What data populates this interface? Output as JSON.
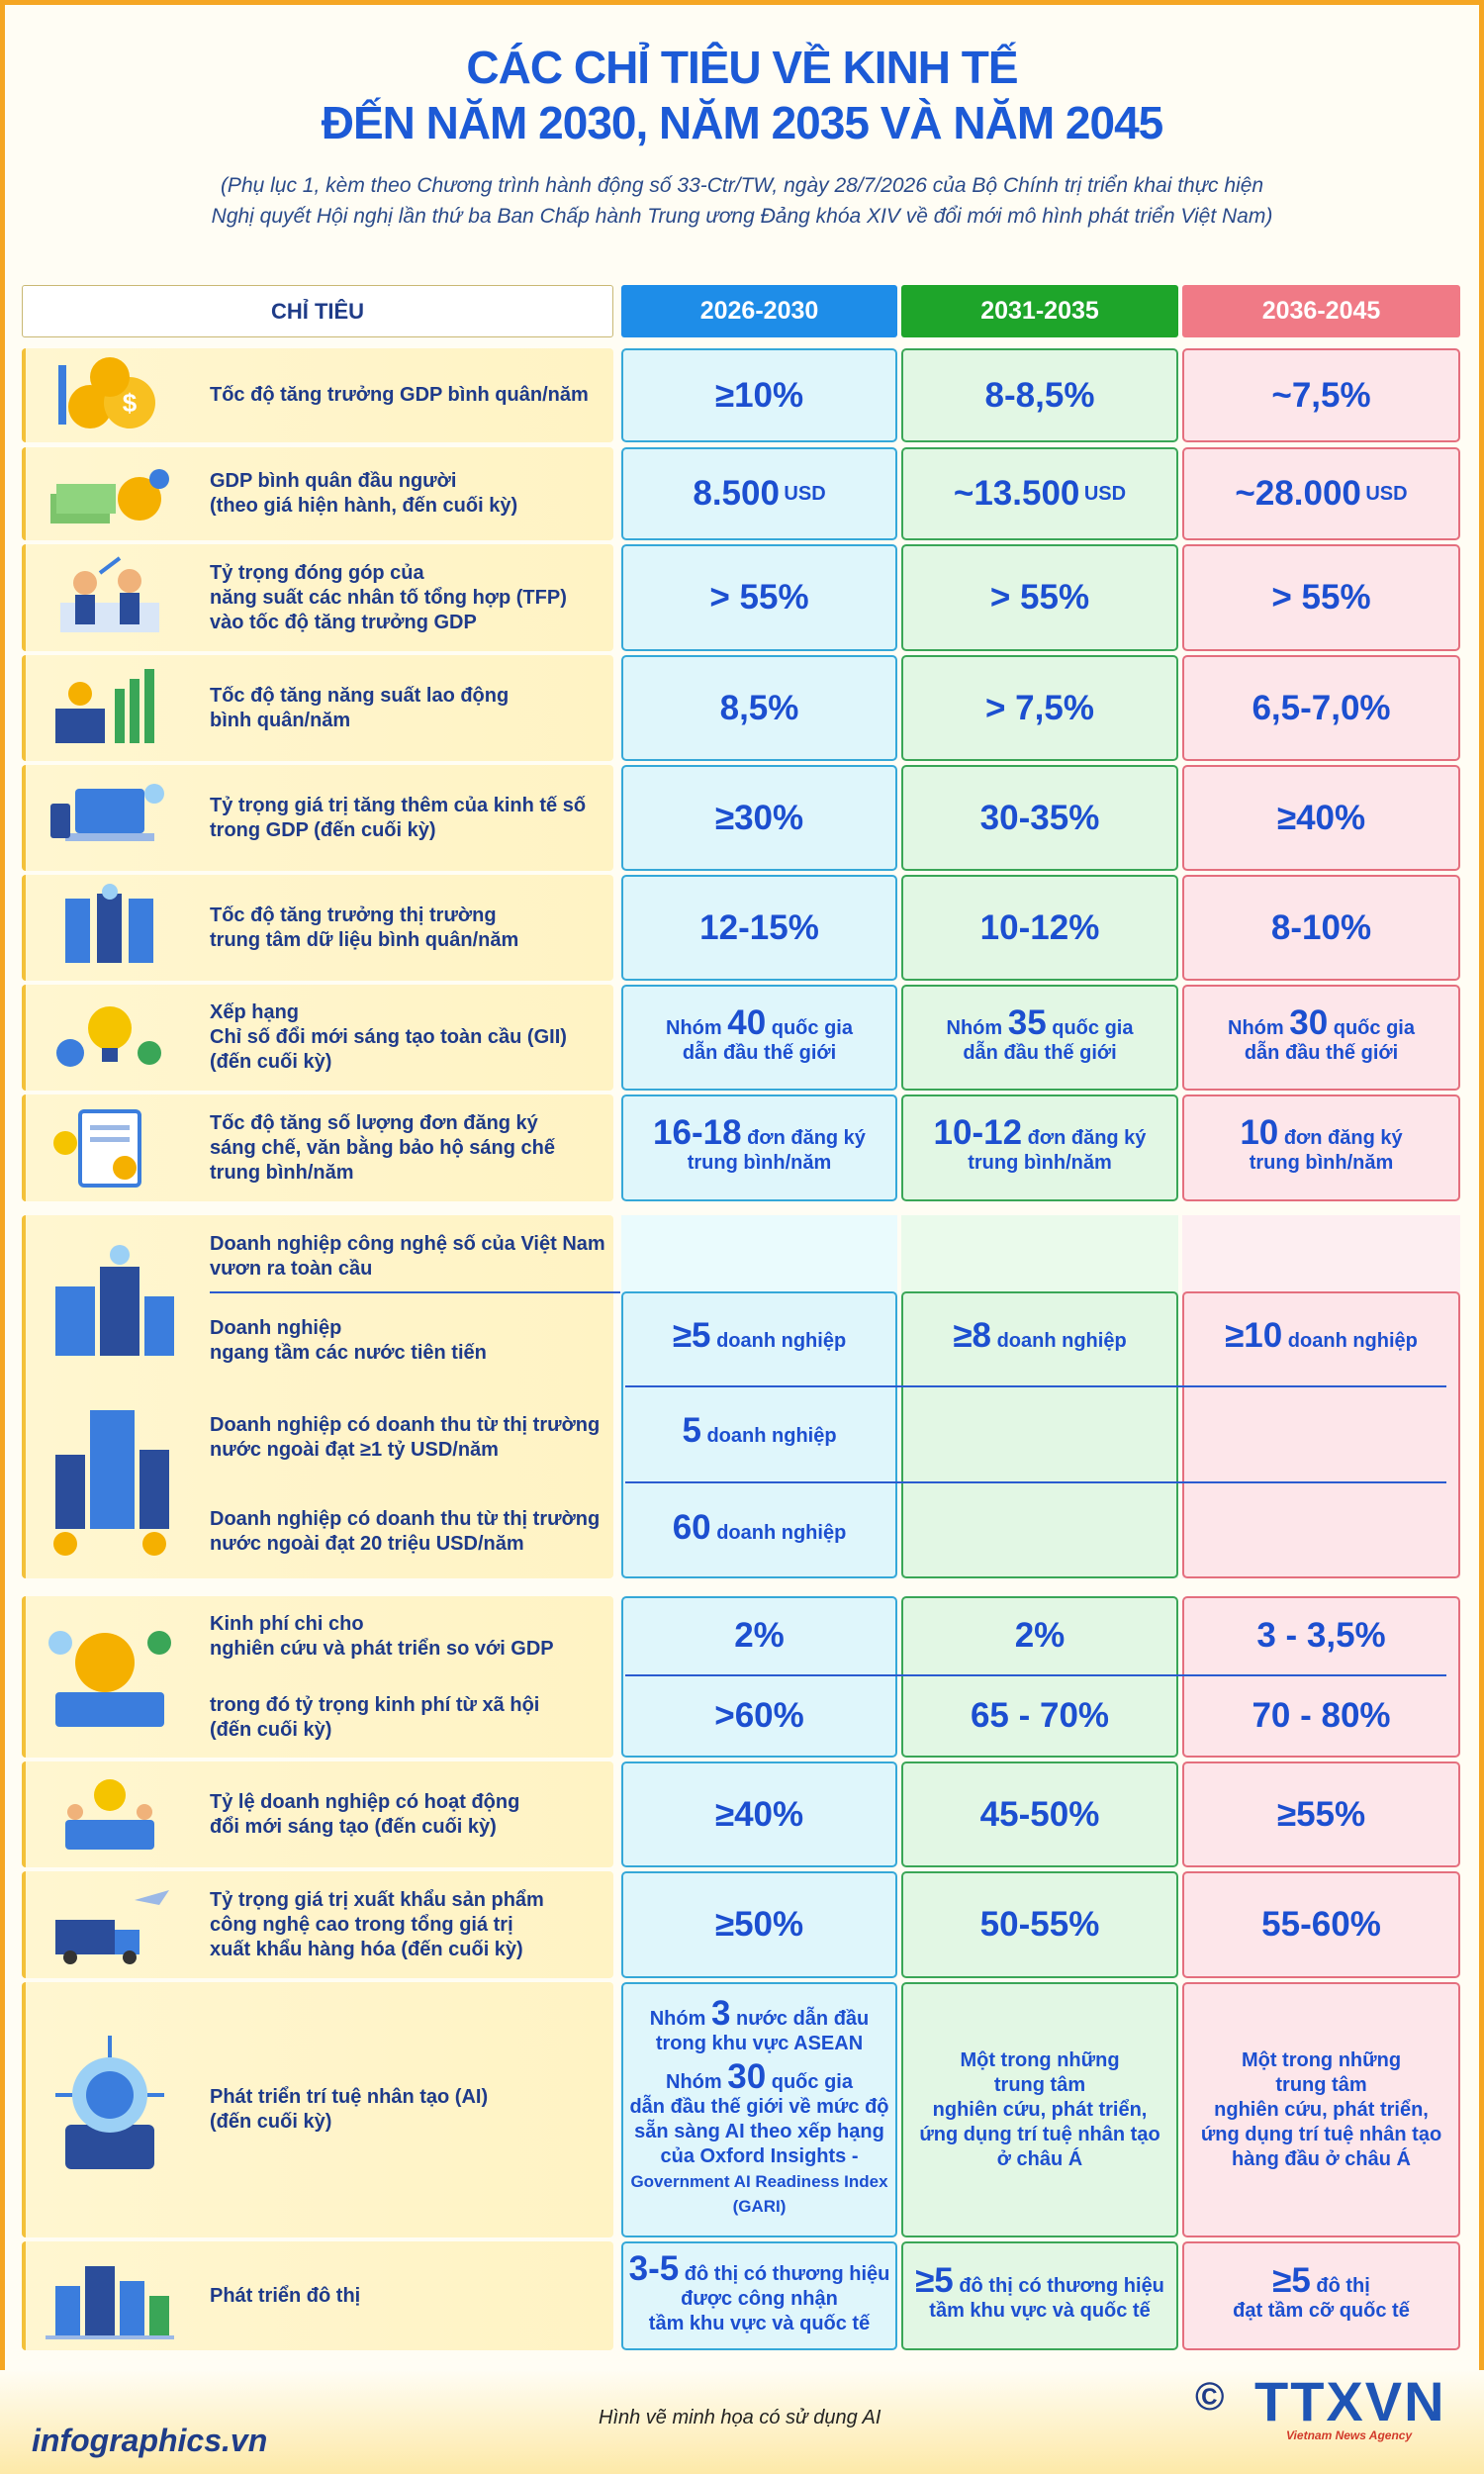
{
  "title": {
    "line1": "CÁC CHỈ TIÊU VỀ KINH TẾ",
    "line2": "ĐẾN NĂM 2030, NĂM 2035 VÀ NĂM 2045"
  },
  "subtitle": {
    "line1": "(Phụ lục 1, kèm theo Chương trình hành động số 33-Ctr/TW, ngày 28/7/2026 của Bộ Chính trị triển khai thực hiện",
    "line2": "Nghị quyết Hội nghị lần thứ ba Ban Chấp hành Trung ương Đảng khóa XIV về đổi mới mô hình phát triển Việt Nam)"
  },
  "columns": {
    "label": "CHỈ TIÊU",
    "p1": "2026-2030",
    "p2": "2031-2035",
    "p3": "2036-2045"
  },
  "colors": {
    "p1": "#1e8de8",
    "p2": "#1ea52a",
    "p3": "#f07a86",
    "accent": "#f5a623",
    "text": "#1c4fd0"
  },
  "rows": {
    "r1": {
      "l1": "Tốc độ tăng trưởng GDP bình quân/năm",
      "a": "≥10%",
      "b": "8-8,5%",
      "c": "~7,5%",
      "icon": "gold-coins-icon"
    },
    "r2": {
      "l1": "GDP bình quân đầu người",
      "l2": "(theo giá hiện hành, đến cuối kỳ)",
      "a": "8.500",
      "b": "~13.500",
      "c": "~28.000",
      "unit": "USD",
      "icon": "money-stack-icon"
    },
    "r3": {
      "l1": "Tỷ trọng đóng góp của",
      "l2": "năng suất các nhân tố tổng hợp (TFP)",
      "l3": "vào tốc độ tăng trưởng GDP",
      "a": "> 55%",
      "b": "> 55%",
      "c": "> 55%",
      "icon": "business-people-icon"
    },
    "r4": {
      "l1": "Tốc độ tăng năng suất lao động",
      "l2": "bình quân/năm",
      "a": "8,5%",
      "b": "> 7,5%",
      "c": "6,5-7,0%",
      "icon": "factory-robot-icon"
    },
    "r5": {
      "l1": "Tỷ trọng giá trị tăng thêm của kinh tế số",
      "l2": "trong GDP (đến cuối kỳ)",
      "a": "≥30%",
      "b": "30-35%",
      "c": "≥40%",
      "icon": "laptop-digital-icon"
    },
    "r6": {
      "l1": "Tốc độ tăng trưởng thị trường",
      "l2": "trung tâm dữ liệu bình quân/năm",
      "a": "12-15%",
      "b": "10-12%",
      "c": "8-10%",
      "icon": "data-center-icon"
    },
    "r7": {
      "l1": "Xếp hạng",
      "l2": "Chỉ số đổi mới sáng tạo toàn cầu (GII)",
      "l3": "(đến cuối kỳ)",
      "pre": "Nhóm",
      "a": "40",
      "b": "35",
      "c": "30",
      "post1": "quốc gia",
      "post2": "dẫn đầu thế giới",
      "icon": "lightbulb-gear-icon"
    },
    "r8": {
      "l1": "Tốc độ tăng số lượng đơn đăng ký",
      "l2": "sáng chế, văn bằng bảo hộ sáng chế",
      "l3": "trung bình/năm",
      "a": "16-18",
      "b": "10-12",
      "c": "10",
      "post1": "đơn đăng ký",
      "post2": "trung bình/năm",
      "icon": "patent-document-icon"
    },
    "r9": {
      "head1": "Doanh nghiệp công nghệ số của Việt Nam",
      "head2": "vươn ra toàn cầu",
      "s1l1": "Doanh nghiệp",
      "s1l2": "ngang tầm các nước tiên tiến",
      "s1a": "≥5",
      "s1b": "≥8",
      "s1c": "≥10",
      "s2l1": "Doanh nghiệp có doanh thu từ thị trường",
      "s2l2": "nước ngoài đạt ≥1 tỷ USD/năm",
      "s2a": "5",
      "s3l1": "Doanh nghiệp có doanh thu từ thị trường",
      "s3l2": "nước ngoài đạt 20 triệu USD/năm",
      "s3a": "60",
      "unit": "doanh nghiệp",
      "icon": "tech-buildings-icon"
    },
    "r10": {
      "l1": "Kinh phí chi cho",
      "l2": "nghiên cứu và phát triển so với GDP",
      "a": "2%",
      "b": "2%",
      "c": "3 - 3,5%",
      "s2l1": "trong đó tỷ trọng kinh phí từ xã hội",
      "s2l2": "(đến cuối kỳ)",
      "s2a": ">60%",
      "s2b": "65 - 70%",
      "s2c": "70 - 80%",
      "icon": "research-funding-icon"
    },
    "r11": {
      "l1": "Tỷ lệ doanh nghiệp có hoạt động",
      "l2": "đổi mới sáng tạo (đến cuối kỳ)",
      "a": "≥40%",
      "b": "45-50%",
      "c": "≥55%",
      "icon": "innovation-team-icon"
    },
    "r12": {
      "l1": "Tỷ trọng giá trị xuất khẩu sản phẩm",
      "l2": "công nghệ cao trong tổng giá trị",
      "l3": "xuất khẩu hàng hóa (đến cuối kỳ)",
      "a": "≥50%",
      "b": "50-55%",
      "c": "55-60%",
      "icon": "export-logistics-icon"
    },
    "r13": {
      "l1": "Phát triển trí tuệ nhân tạo (AI)",
      "l2": "(đến cuối kỳ)",
      "a_pre": "Nhóm",
      "a_n": "3",
      "a_t1": "nước dẫn đầu",
      "a_t2": "trong khu vực ASEAN",
      "a2_n": "30",
      "a2_t1": "quốc gia",
      "a2_t2": "dẫn đầu thế giới về mức độ",
      "a2_t3": "sẵn sàng AI theo xếp hạng",
      "a2_t4": "của Oxford Insights -",
      "a2_t5": "Government AI Readiness Index",
      "a2_t6": "(GARI)",
      "b1": "Một trong những",
      "b2": "trung tâm",
      "b3": "nghiên cứu, phát triển,",
      "b4": "ứng dụng trí tuệ nhân tạo",
      "b5": "ở châu Á",
      "c1": "Một trong những",
      "c2": "trung tâm",
      "c3": "nghiên cứu, phát triển,",
      "c4": "ứng dụng trí tuệ nhân tạo",
      "c5": "hàng đầu ở châu Á",
      "icon": "ai-brain-chip-icon"
    },
    "r14": {
      "l1": "Phát triển đô thị",
      "a_n": "3-5",
      "a_t1": "đô thị có thương hiệu",
      "a_t2": "được công nhận",
      "a_t3": "tầm khu vực và quốc tế",
      "b_n": "≥5",
      "b_t1": "đô thị có thương hiệu",
      "b_t2": "tầm khu vực và quốc tế",
      "c_n": "≥5",
      "c_t1": "đô thị",
      "c_t2": "đạt tầm cỡ quốc tế",
      "icon": "smart-city-icon"
    }
  },
  "footer": {
    "note": "Hình vẽ minh họa có sử dụng AI",
    "site": "infographics.vn",
    "logo": "TTXVN",
    "logo_sub": "Vietnam News Agency",
    "copyright": "©"
  }
}
